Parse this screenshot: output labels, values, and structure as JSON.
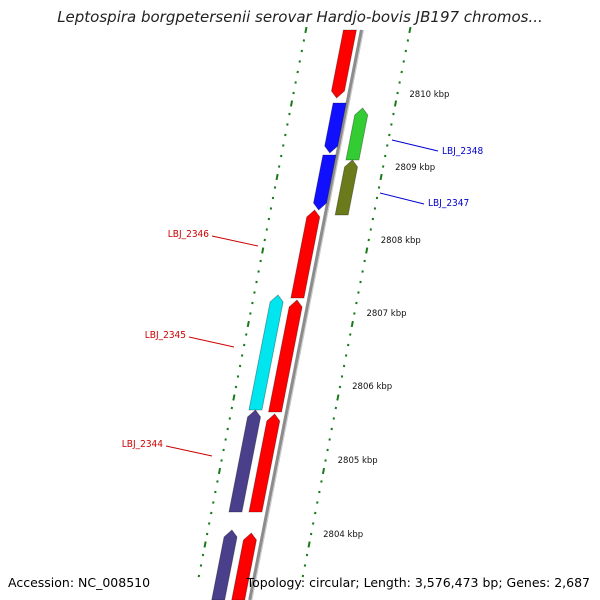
{
  "title": "Leptospira borgpetersenii serovar Hardjo-bovis JB197 chromos...",
  "accession": "Accession: NC_008510",
  "summary": "Topology: circular; Length: 3,576,473 bp; Genes: 2,687",
  "colors": {
    "backbone": "#8c8c8c",
    "tick": "#1a7a1a",
    "red": "#ff0000",
    "blue": "#1010ff",
    "green": "#33cc33",
    "olive": "#6b7a1a",
    "cyan": "#00e5ee",
    "slate": "#4a3f8a",
    "label_red": "#cc0000",
    "label_blue": "#0000cc"
  },
  "scale_labels": [
    "2810 kbp",
    "2809 kbp",
    "2808 kbp",
    "2807 kbp",
    "2806 kbp",
    "2805 kbp",
    "2804 kbp"
  ],
  "gene_labels": [
    {
      "name": "LBJ_2348",
      "color": "blue"
    },
    {
      "name": "LBJ_2347",
      "color": "blue"
    },
    {
      "name": "LBJ_2346",
      "color": "red"
    },
    {
      "name": "LBJ_2345",
      "color": "red"
    },
    {
      "name": "LBJ_2344",
      "color": "red"
    }
  ],
  "features": [
    {
      "color": "red",
      "strand": "outer-left"
    },
    {
      "color": "blue",
      "strand": "inner-left"
    },
    {
      "color": "blue",
      "strand": "inner-left"
    },
    {
      "color": "green",
      "strand": "right"
    },
    {
      "color": "olive",
      "strand": "right"
    },
    {
      "color": "red",
      "strand": "inner-left"
    },
    {
      "color": "red",
      "strand": "inner-left"
    },
    {
      "color": "cyan",
      "strand": "outer-left"
    },
    {
      "color": "red",
      "strand": "inner-left"
    },
    {
      "color": "slate",
      "strand": "outer-left"
    },
    {
      "color": "red",
      "strand": "inner-left"
    },
    {
      "color": "slate",
      "strand": "outer-left"
    }
  ]
}
